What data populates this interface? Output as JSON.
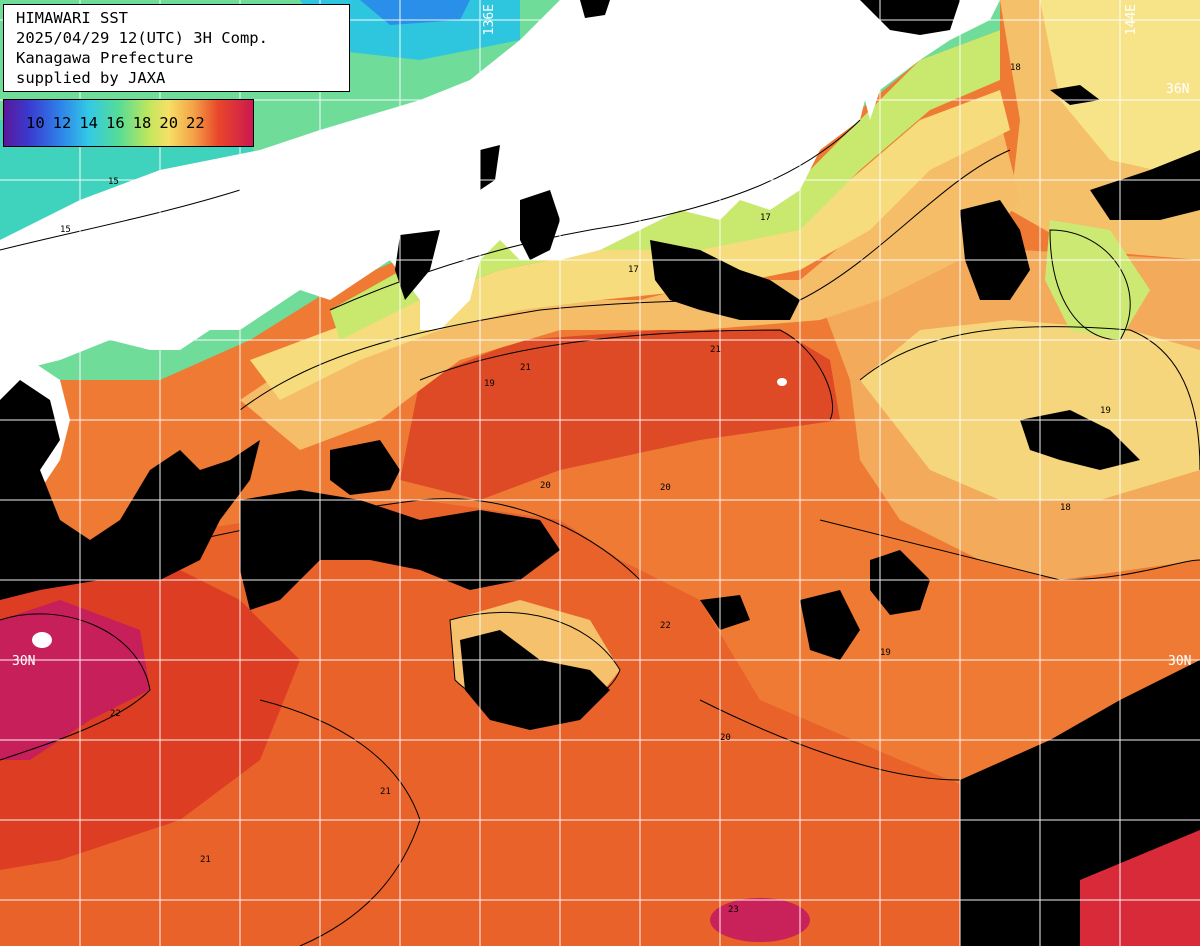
{
  "info": {
    "line1": "HIMAWARI SST",
    "line2": "2025/04/29 12(UTC) 3H Comp.",
    "line3": "Kanagawa Prefecture",
    "line4": "supplied by JAXA"
  },
  "legend": {
    "ticks": [
      "10",
      "12",
      "14",
      "16",
      "18",
      "20",
      "22"
    ]
  },
  "grid_labels": {
    "lon_136": "136E",
    "lon_144": "144E",
    "lat_36": "36N",
    "lat_30_left": "30N",
    "lat_30_right": "30N"
  },
  "contour_labels": [
    "15",
    "15",
    "17",
    "17",
    "18",
    "18",
    "19",
    "19",
    "19",
    "20",
    "20",
    "20",
    "21",
    "21",
    "21",
    "21",
    "22",
    "22",
    "23"
  ],
  "colors": {
    "land": "#ffffff",
    "cloud": "#000000",
    "sst_15": "#6fe09a",
    "sst_17": "#c4ea6a",
    "sst_18": "#f5df79",
    "sst_19": "#f6b866",
    "sst_20": "#f1983f",
    "sst_21": "#eb6a2c",
    "sst_22": "#dc3a22",
    "sst_23": "#c91d55"
  }
}
